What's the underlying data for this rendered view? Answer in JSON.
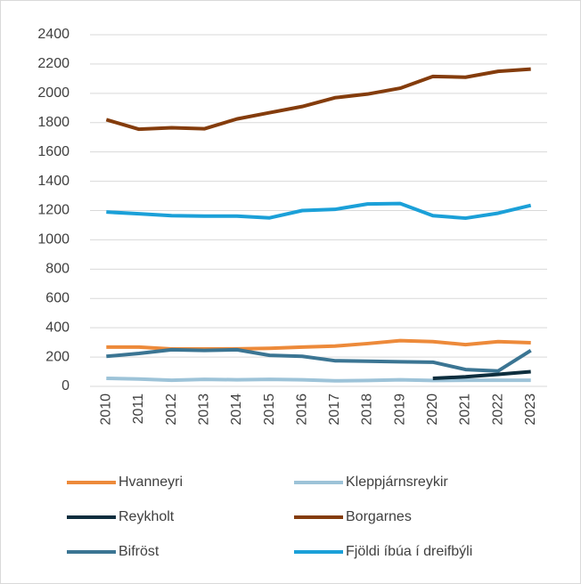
{
  "chart_data": {
    "type": "line",
    "categories": [
      "2010",
      "2011",
      "2012",
      "2013",
      "2014",
      "2015",
      "2016",
      "2017",
      "2018",
      "2019",
      "2020",
      "2021",
      "2022",
      "2023"
    ],
    "series": [
      {
        "name": "Hvanneyri",
        "color": "#ed8a3a",
        "values": [
          268,
          268,
          255,
          255,
          256,
          260,
          268,
          275,
          292,
          312,
          305,
          285,
          305,
          298
        ]
      },
      {
        "name": "Kleppjárnsreykir",
        "color": "#9dc3d8",
        "values": [
          55,
          50,
          42,
          48,
          45,
          48,
          45,
          38,
          40,
          45,
          40,
          42,
          42,
          42
        ]
      },
      {
        "name": "Reykholt",
        "color": "#0d2e3e",
        "values": [
          null,
          null,
          null,
          null,
          null,
          null,
          null,
          null,
          null,
          null,
          55,
          65,
          82,
          100
        ]
      },
      {
        "name": "Borgarnes",
        "color": "#843c0c",
        "values": [
          1820,
          1755,
          1765,
          1758,
          1825,
          1868,
          1910,
          1970,
          1995,
          2035,
          2115,
          2110,
          2150,
          2165
        ]
      },
      {
        "name": "Bifröst",
        "color": "#3b7593",
        "values": [
          205,
          225,
          250,
          245,
          250,
          212,
          205,
          175,
          172,
          168,
          165,
          115,
          105,
          245
        ]
      },
      {
        "name": "Fjöldi íbúa í dreifbýli",
        "color": "#1ba0d8",
        "values": [
          1190,
          1178,
          1165,
          1162,
          1162,
          1150,
          1200,
          1208,
          1245,
          1248,
          1165,
          1148,
          1182,
          1235
        ]
      }
    ],
    "ylim": [
      0,
      2400
    ],
    "yticks": [
      0,
      200,
      400,
      600,
      800,
      1000,
      1200,
      1400,
      1600,
      1800,
      2000,
      2200,
      2400
    ],
    "grid": true
  }
}
